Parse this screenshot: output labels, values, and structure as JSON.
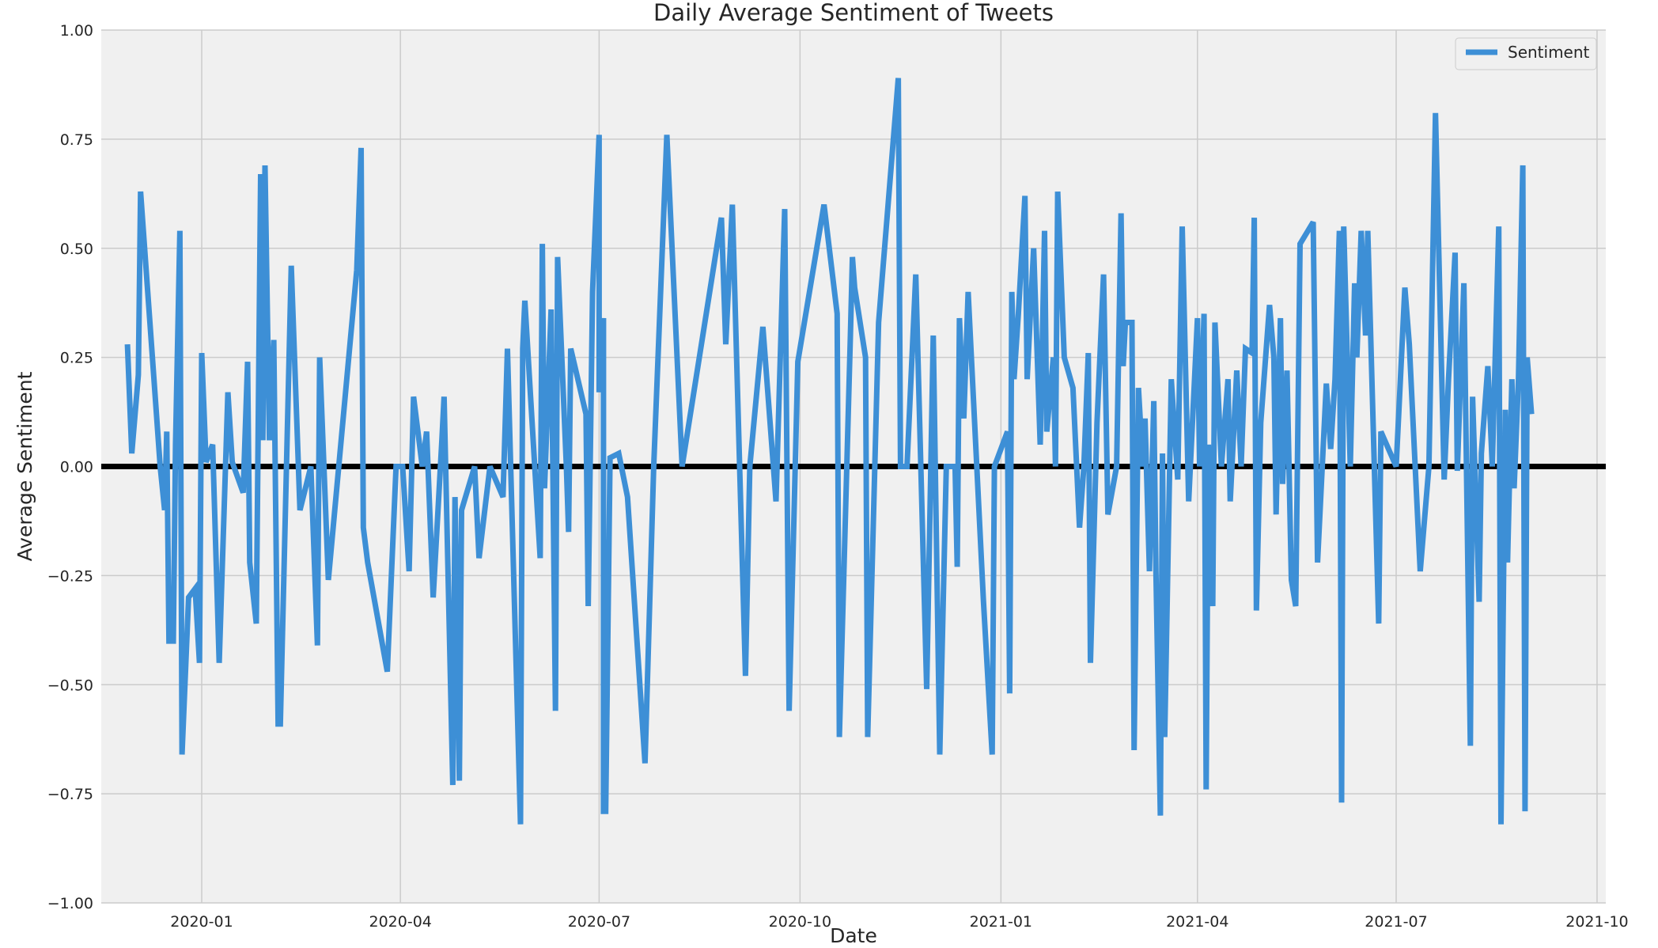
{
  "chart_data": {
    "type": "line",
    "title": "Daily Average Sentiment of Tweets",
    "xlabel": "Date",
    "ylabel": "Average Sentiment",
    "ylim": [
      -1.0,
      1.0
    ],
    "xlim": [
      "2019-11-16",
      "2021-10-05"
    ],
    "grid": true,
    "legend": {
      "position": "top-right",
      "entries": [
        "Sentiment"
      ]
    },
    "colors": {
      "series": "#3d8fd6",
      "baseline": "#000000",
      "plot_bg": "#f0f0f0",
      "grid": "#cbcbcb"
    },
    "yticks": [
      {
        "value": 1.0,
        "label": "1.00"
      },
      {
        "value": 0.75,
        "label": "0.75"
      },
      {
        "value": 0.5,
        "label": "0.50"
      },
      {
        "value": 0.25,
        "label": "0.25"
      },
      {
        "value": 0.0,
        "label": "0.00"
      },
      {
        "value": -0.25,
        "label": "−0.25"
      },
      {
        "value": -0.5,
        "label": "−0.50"
      },
      {
        "value": -0.75,
        "label": "−0.75"
      },
      {
        "value": -1.0,
        "label": "−1.00"
      }
    ],
    "xticks": [
      {
        "value": "2020-01-01",
        "label": "2020-01"
      },
      {
        "value": "2020-04-01",
        "label": "2020-04"
      },
      {
        "value": "2020-07-01",
        "label": "2020-07"
      },
      {
        "value": "2020-10-01",
        "label": "2020-10"
      },
      {
        "value": "2021-01-01",
        "label": "2021-01"
      },
      {
        "value": "2021-04-01",
        "label": "2021-04"
      },
      {
        "value": "2021-07-01",
        "label": "2021-07"
      },
      {
        "value": "2021-10-01",
        "label": "2021-10"
      }
    ],
    "reference_lines": [
      {
        "y": 0.0
      }
    ],
    "series": [
      {
        "name": "Sentiment",
        "points": [
          [
            "2019-11-28",
            0.28
          ],
          [
            "2019-11-30",
            0.03
          ],
          [
            "2019-12-03",
            0.21
          ],
          [
            "2019-12-04",
            0.63
          ],
          [
            "2019-12-13",
            0.0
          ],
          [
            "2019-12-15",
            -0.1
          ],
          [
            "2019-12-16",
            0.08
          ],
          [
            "2019-12-17",
            -0.4
          ],
          [
            "2019-12-19",
            -0.4
          ],
          [
            "2019-12-20",
            0.05
          ],
          [
            "2019-12-22",
            0.54
          ],
          [
            "2019-12-23",
            -0.66
          ],
          [
            "2019-12-26",
            -0.3
          ],
          [
            "2019-12-29",
            -0.28
          ],
          [
            "2019-12-31",
            -0.45
          ],
          [
            "2020-01-01",
            0.26
          ],
          [
            "2020-01-03",
            0.01
          ],
          [
            "2020-01-06",
            0.05
          ],
          [
            "2020-01-09",
            -0.45
          ],
          [
            "2020-01-13",
            0.17
          ],
          [
            "2020-01-15",
            0.01
          ],
          [
            "2020-01-20",
            -0.06
          ],
          [
            "2020-01-22",
            0.24
          ],
          [
            "2020-01-23",
            -0.22
          ],
          [
            "2020-01-26",
            -0.36
          ],
          [
            "2020-01-28",
            0.67
          ],
          [
            "2020-01-29",
            0.06
          ],
          [
            "2020-01-30",
            0.69
          ],
          [
            "2020-02-01",
            0.06
          ],
          [
            "2020-02-03",
            0.29
          ],
          [
            "2020-02-05",
            -0.59
          ],
          [
            "2020-02-06",
            -0.59
          ],
          [
            "2020-02-11",
            0.46
          ],
          [
            "2020-02-15",
            -0.1
          ],
          [
            "2020-02-20",
            0.0
          ],
          [
            "2020-02-23",
            -0.41
          ],
          [
            "2020-02-24",
            0.25
          ],
          [
            "2020-02-28",
            -0.26
          ],
          [
            "2020-03-12",
            0.45
          ],
          [
            "2020-03-14",
            0.73
          ],
          [
            "2020-03-15",
            -0.14
          ],
          [
            "2020-03-17",
            -0.22
          ],
          [
            "2020-03-26",
            -0.47
          ],
          [
            "2020-03-30",
            0.0
          ],
          [
            "2020-04-02",
            0.0
          ],
          [
            "2020-04-05",
            -0.24
          ],
          [
            "2020-04-07",
            0.16
          ],
          [
            "2020-04-11",
            0.0
          ],
          [
            "2020-04-13",
            0.08
          ],
          [
            "2020-04-16",
            -0.3
          ],
          [
            "2020-04-20",
            0.06
          ],
          [
            "2020-04-21",
            0.16
          ],
          [
            "2020-04-25",
            -0.73
          ],
          [
            "2020-04-26",
            -0.07
          ],
          [
            "2020-04-28",
            -0.72
          ],
          [
            "2020-04-29",
            -0.1
          ],
          [
            "2020-05-05",
            0.0
          ],
          [
            "2020-05-07",
            -0.21
          ],
          [
            "2020-05-12",
            0.0
          ],
          [
            "2020-05-18",
            -0.07
          ],
          [
            "2020-05-20",
            0.27
          ],
          [
            "2020-05-26",
            -0.82
          ],
          [
            "2020-05-27",
            0.27
          ],
          [
            "2020-05-28",
            0.38
          ],
          [
            "2020-06-04",
            -0.21
          ],
          [
            "2020-06-05",
            0.51
          ],
          [
            "2020-06-06",
            -0.05
          ],
          [
            "2020-06-09",
            0.36
          ],
          [
            "2020-06-11",
            -0.56
          ],
          [
            "2020-06-12",
            0.48
          ],
          [
            "2020-06-16",
            0.0
          ],
          [
            "2020-06-17",
            -0.15
          ],
          [
            "2020-06-18",
            0.27
          ],
          [
            "2020-06-25",
            0.12
          ],
          [
            "2020-06-26",
            -0.32
          ],
          [
            "2020-06-28",
            0.4
          ],
          [
            "2020-07-01",
            0.76
          ],
          [
            "2020-07-01",
            0.17
          ],
          [
            "2020-07-03",
            0.34
          ],
          [
            "2020-07-03",
            -0.79
          ],
          [
            "2020-07-04",
            -0.79
          ],
          [
            "2020-07-06",
            0.02
          ],
          [
            "2020-07-10",
            0.03
          ],
          [
            "2020-07-14",
            -0.07
          ],
          [
            "2020-07-22",
            -0.68
          ],
          [
            "2020-07-26",
            0.0
          ],
          [
            "2020-08-01",
            0.76
          ],
          [
            "2020-08-08",
            0.0
          ],
          [
            "2020-08-26",
            0.57
          ],
          [
            "2020-08-28",
            0.28
          ],
          [
            "2020-08-31",
            0.6
          ],
          [
            "2020-09-06",
            -0.48
          ],
          [
            "2020-09-08",
            0.0
          ],
          [
            "2020-09-14",
            0.32
          ],
          [
            "2020-09-20",
            -0.08
          ],
          [
            "2020-09-24",
            0.59
          ],
          [
            "2020-09-26",
            -0.56
          ],
          [
            "2020-09-30",
            0.24
          ],
          [
            "2020-10-12",
            0.6
          ],
          [
            "2020-10-18",
            0.35
          ],
          [
            "2020-10-19",
            -0.62
          ],
          [
            "2020-10-24",
            0.29
          ],
          [
            "2020-10-25",
            0.48
          ],
          [
            "2020-10-26",
            0.41
          ],
          [
            "2020-10-31",
            0.25
          ],
          [
            "2020-11-01",
            -0.62
          ],
          [
            "2020-11-06",
            0.33
          ],
          [
            "2020-11-15",
            0.89
          ],
          [
            "2020-11-16",
            0.0
          ],
          [
            "2020-11-19",
            0.0
          ],
          [
            "2020-11-23",
            0.44
          ],
          [
            "2020-11-28",
            -0.51
          ],
          [
            "2020-12-01",
            0.3
          ],
          [
            "2020-12-04",
            -0.66
          ],
          [
            "2020-12-07",
            0.0
          ],
          [
            "2020-12-11",
            0.0
          ],
          [
            "2020-12-12",
            -0.23
          ],
          [
            "2020-12-13",
            0.34
          ],
          [
            "2020-12-15",
            0.11
          ],
          [
            "2020-12-17",
            0.4
          ],
          [
            "2020-12-24",
            -0.31
          ],
          [
            "2020-12-28",
            -0.66
          ],
          [
            "2020-12-29",
            0.0
          ],
          [
            "2021-01-04",
            0.08
          ],
          [
            "2021-01-05",
            -0.52
          ],
          [
            "2021-01-06",
            0.4
          ],
          [
            "2021-01-07",
            0.2
          ],
          [
            "2021-01-09",
            0.35
          ],
          [
            "2021-01-12",
            0.62
          ],
          [
            "2021-01-13",
            0.2
          ],
          [
            "2021-01-16",
            0.5
          ],
          [
            "2021-01-19",
            0.05
          ],
          [
            "2021-01-21",
            0.54
          ],
          [
            "2021-01-22",
            0.08
          ],
          [
            "2021-01-25",
            0.25
          ],
          [
            "2021-01-26",
            0.0
          ],
          [
            "2021-01-27",
            0.63
          ],
          [
            "2021-01-30",
            0.25
          ],
          [
            "2021-02-03",
            0.18
          ],
          [
            "2021-02-06",
            -0.14
          ],
          [
            "2021-02-08",
            0.0
          ],
          [
            "2021-02-10",
            0.26
          ],
          [
            "2021-02-11",
            -0.45
          ],
          [
            "2021-02-14",
            0.1
          ],
          [
            "2021-02-17",
            0.44
          ],
          [
            "2021-02-19",
            -0.11
          ],
          [
            "2021-02-23",
            0.0
          ],
          [
            "2021-02-25",
            0.58
          ],
          [
            "2021-02-26",
            0.23
          ],
          [
            "2021-02-27",
            0.33
          ],
          [
            "2021-03-02",
            0.33
          ],
          [
            "2021-03-03",
            -0.65
          ],
          [
            "2021-03-05",
            0.18
          ],
          [
            "2021-03-07",
            0.0
          ],
          [
            "2021-03-08",
            0.11
          ],
          [
            "2021-03-10",
            -0.24
          ],
          [
            "2021-03-12",
            0.15
          ],
          [
            "2021-03-13",
            -0.24
          ],
          [
            "2021-03-15",
            -0.8
          ],
          [
            "2021-03-16",
            0.03
          ],
          [
            "2021-03-17",
            -0.62
          ],
          [
            "2021-03-20",
            0.2
          ],
          [
            "2021-03-23",
            -0.03
          ],
          [
            "2021-03-25",
            0.55
          ],
          [
            "2021-03-28",
            -0.08
          ],
          [
            "2021-04-01",
            0.34
          ],
          [
            "2021-04-02",
            0.0
          ],
          [
            "2021-04-04",
            0.35
          ],
          [
            "2021-04-05",
            -0.74
          ],
          [
            "2021-04-06",
            0.05
          ],
          [
            "2021-04-08",
            -0.32
          ],
          [
            "2021-04-09",
            0.33
          ],
          [
            "2021-04-12",
            0.0
          ],
          [
            "2021-04-15",
            0.2
          ],
          [
            "2021-04-16",
            -0.08
          ],
          [
            "2021-04-19",
            0.22
          ],
          [
            "2021-04-21",
            0.0
          ],
          [
            "2021-04-23",
            0.27
          ],
          [
            "2021-04-26",
            0.26
          ],
          [
            "2021-04-27",
            0.57
          ],
          [
            "2021-04-28",
            -0.33
          ],
          [
            "2021-04-30",
            0.1
          ],
          [
            "2021-05-04",
            0.37
          ],
          [
            "2021-05-06",
            0.25
          ],
          [
            "2021-05-07",
            -0.11
          ],
          [
            "2021-05-09",
            0.34
          ],
          [
            "2021-05-10",
            -0.04
          ],
          [
            "2021-05-12",
            0.22
          ],
          [
            "2021-05-14",
            -0.26
          ],
          [
            "2021-05-16",
            -0.32
          ],
          [
            "2021-05-18",
            0.51
          ],
          [
            "2021-05-24",
            0.56
          ],
          [
            "2021-05-26",
            -0.22
          ],
          [
            "2021-05-30",
            0.19
          ],
          [
            "2021-06-01",
            0.04
          ],
          [
            "2021-06-03",
            0.2
          ],
          [
            "2021-06-05",
            0.54
          ],
          [
            "2021-06-06",
            -0.77
          ],
          [
            "2021-06-07",
            0.55
          ],
          [
            "2021-06-10",
            0.0
          ],
          [
            "2021-06-12",
            0.42
          ],
          [
            "2021-06-13",
            0.25
          ],
          [
            "2021-06-15",
            0.54
          ],
          [
            "2021-06-17",
            0.3
          ],
          [
            "2021-06-18",
            0.54
          ],
          [
            "2021-06-23",
            -0.36
          ],
          [
            "2021-06-24",
            0.08
          ],
          [
            "2021-07-01",
            0.0
          ],
          [
            "2021-07-05",
            0.41
          ],
          [
            "2021-07-07",
            0.28
          ],
          [
            "2021-07-12",
            -0.24
          ],
          [
            "2021-07-16",
            0.0
          ],
          [
            "2021-07-19",
            0.81
          ],
          [
            "2021-07-23",
            -0.03
          ],
          [
            "2021-07-25",
            0.2
          ],
          [
            "2021-07-28",
            0.49
          ],
          [
            "2021-07-29",
            -0.01
          ],
          [
            "2021-08-01",
            0.42
          ],
          [
            "2021-08-04",
            -0.64
          ],
          [
            "2021-08-05",
            0.16
          ],
          [
            "2021-08-08",
            -0.31
          ],
          [
            "2021-08-09",
            0.03
          ],
          [
            "2021-08-12",
            0.23
          ],
          [
            "2021-08-14",
            0.0
          ],
          [
            "2021-08-17",
            0.55
          ],
          [
            "2021-08-18",
            -0.82
          ],
          [
            "2021-08-20",
            0.13
          ],
          [
            "2021-08-21",
            -0.22
          ],
          [
            "2021-08-23",
            0.2
          ],
          [
            "2021-08-24",
            -0.05
          ],
          [
            "2021-08-26",
            0.2
          ],
          [
            "2021-08-28",
            0.69
          ],
          [
            "2021-08-29",
            -0.79
          ],
          [
            "2021-08-30",
            0.25
          ],
          [
            "2021-09-01",
            0.12
          ]
        ]
      }
    ]
  }
}
